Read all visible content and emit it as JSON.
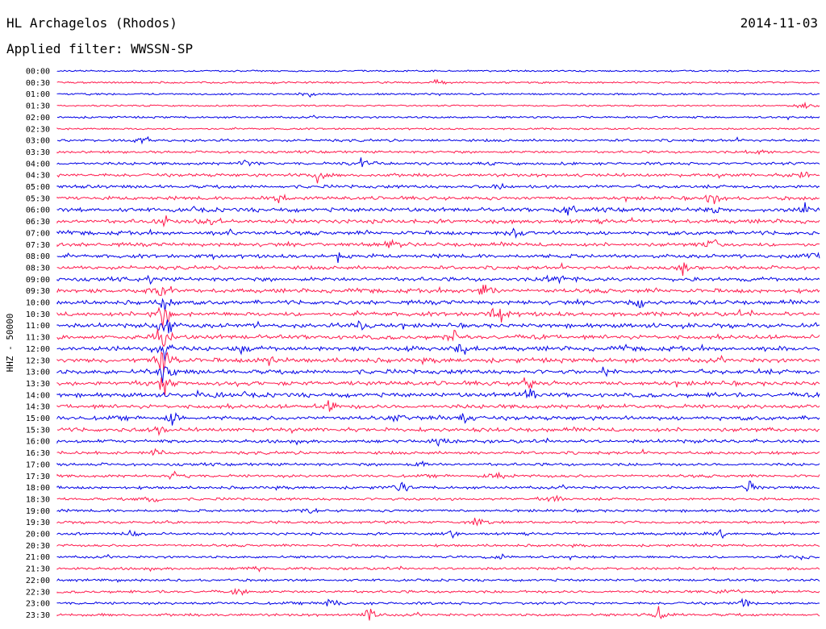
{
  "header": {
    "station": "HL Archagelos (Rhodos)",
    "date": "2014-11-03",
    "filter": "Applied filter: WWSSN-SP"
  },
  "chart_data": {
    "type": "line",
    "title": "HL Archagelos (Rhodos)",
    "ylabel": "HHZ - 50000",
    "colors": [
      "#0000e6",
      "#ff1a4d"
    ],
    "rows": [
      {
        "label": "00:00",
        "color": "#0000e6",
        "activity": 0.15,
        "events": []
      },
      {
        "label": "00:30",
        "color": "#ff1a4d",
        "activity": 0.2,
        "events": [
          [
            0.5,
            5
          ]
        ]
      },
      {
        "label": "01:00",
        "color": "#0000e6",
        "activity": 0.2,
        "events": [
          [
            0.33,
            7
          ]
        ]
      },
      {
        "label": "01:30",
        "color": "#ff1a4d",
        "activity": 0.15,
        "events": [
          [
            0.98,
            8
          ]
        ]
      },
      {
        "label": "02:00",
        "color": "#0000e6",
        "activity": 0.25,
        "events": []
      },
      {
        "label": "02:30",
        "color": "#ff1a4d",
        "activity": 0.2,
        "events": []
      },
      {
        "label": "03:00",
        "color": "#0000e6",
        "activity": 0.4,
        "events": [
          [
            0.11,
            12
          ]
        ]
      },
      {
        "label": "03:30",
        "color": "#ff1a4d",
        "activity": 0.35,
        "events": [
          [
            0.92,
            12
          ]
        ]
      },
      {
        "label": "04:00",
        "color": "#0000e6",
        "activity": 0.45,
        "events": [
          [
            0.4,
            12
          ],
          [
            0.25,
            6
          ]
        ]
      },
      {
        "label": "04:30",
        "color": "#ff1a4d",
        "activity": 0.55,
        "events": [
          [
            0.34,
            12
          ],
          [
            0.98,
            8
          ]
        ]
      },
      {
        "label": "05:00",
        "color": "#0000e6",
        "activity": 0.55,
        "events": [
          [
            0.58,
            8
          ]
        ]
      },
      {
        "label": "05:30",
        "color": "#ff1a4d",
        "activity": 0.6,
        "events": [
          [
            0.29,
            10
          ],
          [
            0.86,
            12
          ]
        ]
      },
      {
        "label": "06:00",
        "color": "#0000e6",
        "activity": 0.75,
        "events": [
          [
            0.86,
            14
          ],
          [
            0.98,
            16
          ],
          [
            0.67,
            10
          ]
        ]
      },
      {
        "label": "06:30",
        "color": "#ff1a4d",
        "activity": 0.75,
        "events": [
          [
            0.14,
            10
          ],
          [
            0.2,
            10
          ]
        ]
      },
      {
        "label": "07:00",
        "color": "#0000e6",
        "activity": 0.7,
        "events": [
          [
            0.23,
            10
          ],
          [
            0.6,
            10
          ]
        ]
      },
      {
        "label": "07:30",
        "color": "#ff1a4d",
        "activity": 0.65,
        "events": [
          [
            0.44,
            8
          ],
          [
            0.86,
            10
          ]
        ]
      },
      {
        "label": "08:00",
        "color": "#0000e6",
        "activity": 0.65,
        "events": [
          [
            0.37,
            8
          ],
          [
            0.99,
            10
          ]
        ]
      },
      {
        "label": "08:30",
        "color": "#ff1a4d",
        "activity": 0.65,
        "events": [
          [
            0.82,
            12
          ]
        ]
      },
      {
        "label": "09:00",
        "color": "#0000e6",
        "activity": 0.7,
        "events": [
          [
            0.12,
            10
          ],
          [
            0.66,
            12
          ]
        ]
      },
      {
        "label": "09:30",
        "color": "#ff1a4d",
        "activity": 0.75,
        "events": [
          [
            0.14,
            22
          ],
          [
            0.56,
            12
          ]
        ]
      },
      {
        "label": "10:00",
        "color": "#0000e6",
        "activity": 0.75,
        "events": [
          [
            0.14,
            20
          ],
          [
            0.76,
            10
          ]
        ]
      },
      {
        "label": "10:30",
        "color": "#ff1a4d",
        "activity": 0.8,
        "events": [
          [
            0.14,
            30
          ],
          [
            0.58,
            20
          ]
        ]
      },
      {
        "label": "11:00",
        "color": "#0000e6",
        "activity": 0.8,
        "events": [
          [
            0.14,
            28
          ],
          [
            0.4,
            10
          ]
        ]
      },
      {
        "label": "11:30",
        "color": "#ff1a4d",
        "activity": 0.8,
        "events": [
          [
            0.14,
            32
          ],
          [
            0.52,
            14
          ]
        ]
      },
      {
        "label": "12:00",
        "color": "#0000e6",
        "activity": 0.85,
        "events": [
          [
            0.14,
            30
          ],
          [
            0.53,
            14
          ],
          [
            0.24,
            10
          ]
        ]
      },
      {
        "label": "12:30",
        "color": "#ff1a4d",
        "activity": 0.85,
        "events": [
          [
            0.14,
            28
          ],
          [
            0.28,
            14
          ]
        ]
      },
      {
        "label": "13:00",
        "color": "#0000e6",
        "activity": 0.85,
        "events": [
          [
            0.14,
            22
          ],
          [
            0.72,
            12
          ]
        ]
      },
      {
        "label": "13:30",
        "color": "#ff1a4d",
        "activity": 0.8,
        "events": [
          [
            0.14,
            16
          ],
          [
            0.62,
            16
          ]
        ]
      },
      {
        "label": "14:00",
        "color": "#0000e6",
        "activity": 0.8,
        "events": [
          [
            0.2,
            12
          ],
          [
            0.62,
            14
          ]
        ]
      },
      {
        "label": "14:30",
        "color": "#ff1a4d",
        "activity": 0.75,
        "events": [
          [
            0.36,
            12
          ]
        ]
      },
      {
        "label": "15:00",
        "color": "#0000e6",
        "activity": 0.75,
        "events": [
          [
            0.15,
            10
          ],
          [
            0.45,
            10
          ],
          [
            0.53,
            10
          ]
        ]
      },
      {
        "label": "15:30",
        "color": "#ff1a4d",
        "activity": 0.7,
        "events": [
          [
            0.13,
            10
          ]
        ]
      },
      {
        "label": "16:00",
        "color": "#0000e6",
        "activity": 0.6,
        "events": [
          [
            0.5,
            8
          ]
        ]
      },
      {
        "label": "16:30",
        "color": "#ff1a4d",
        "activity": 0.5,
        "events": [
          [
            0.13,
            8
          ]
        ]
      },
      {
        "label": "17:00",
        "color": "#0000e6",
        "activity": 0.45,
        "events": [
          [
            0.48,
            8
          ]
        ]
      },
      {
        "label": "17:30",
        "color": "#ff1a4d",
        "activity": 0.45,
        "events": [
          [
            0.15,
            8
          ],
          [
            0.58,
            8
          ]
        ]
      },
      {
        "label": "18:00",
        "color": "#0000e6",
        "activity": 0.45,
        "events": [
          [
            0.45,
            10
          ],
          [
            0.91,
            10
          ]
        ]
      },
      {
        "label": "18:30",
        "color": "#ff1a4d",
        "activity": 0.4,
        "events": [
          [
            0.12,
            10
          ],
          [
            0.65,
            8
          ]
        ]
      },
      {
        "label": "19:00",
        "color": "#0000e6",
        "activity": 0.4,
        "events": [
          [
            0.33,
            8
          ]
        ]
      },
      {
        "label": "19:30",
        "color": "#ff1a4d",
        "activity": 0.4,
        "events": [
          [
            0.55,
            8
          ]
        ]
      },
      {
        "label": "20:00",
        "color": "#0000e6",
        "activity": 0.4,
        "events": [
          [
            0.1,
            8
          ],
          [
            0.52,
            8
          ],
          [
            0.87,
            8
          ]
        ]
      },
      {
        "label": "20:30",
        "color": "#ff1a4d",
        "activity": 0.35,
        "events": []
      },
      {
        "label": "21:00",
        "color": "#0000e6",
        "activity": 0.35,
        "events": [
          [
            0.58,
            8
          ],
          [
            0.98,
            8
          ]
        ]
      },
      {
        "label": "21:30",
        "color": "#ff1a4d",
        "activity": 0.4,
        "events": [
          [
            0.26,
            10
          ]
        ]
      },
      {
        "label": "22:00",
        "color": "#0000e6",
        "activity": 0.35,
        "events": []
      },
      {
        "label": "22:30",
        "color": "#ff1a4d",
        "activity": 0.4,
        "events": [
          [
            0.24,
            8
          ],
          [
            0.88,
            8
          ]
        ]
      },
      {
        "label": "23:00",
        "color": "#0000e6",
        "activity": 0.4,
        "events": [
          [
            0.36,
            8
          ],
          [
            0.9,
            12
          ]
        ]
      },
      {
        "label": "23:30",
        "color": "#ff1a4d",
        "activity": 0.4,
        "events": [
          [
            0.41,
            16
          ],
          [
            0.79,
            14
          ]
        ]
      }
    ]
  }
}
